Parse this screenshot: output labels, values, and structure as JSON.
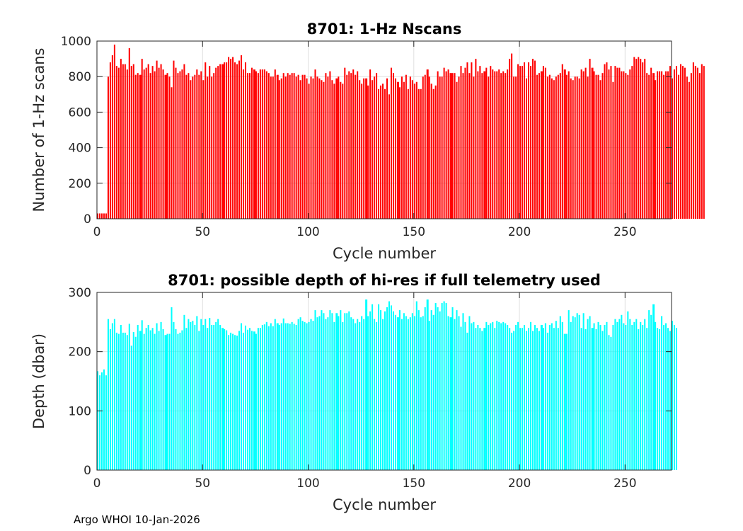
{
  "footer": "Argo WHOI 10-Jan-2026",
  "chart_data": [
    {
      "type": "bar",
      "title": "8701: 1-Hz Nscans",
      "xlabel": "Cycle number",
      "ylabel": "Number of 1-Hz scans",
      "xlim": [
        0,
        272
      ],
      "ylim": [
        0,
        1000
      ],
      "xticks": [
        0,
        50,
        100,
        150,
        200,
        250
      ],
      "yticks": [
        0,
        200,
        400,
        600,
        800,
        1000
      ],
      "grid": true,
      "color": "#ff0000",
      "gaps_after": [
        20,
        32,
        59,
        74,
        85,
        113,
        127,
        142,
        156,
        167,
        183,
        210,
        221,
        234,
        263
      ],
      "values": [
        30,
        30,
        30,
        30,
        30,
        800,
        880,
        920,
        980,
        860,
        850,
        900,
        870,
        870,
        840,
        960,
        860,
        870,
        810,
        820,
        810,
        900,
        840,
        850,
        870,
        820,
        860,
        830,
        890,
        850,
        870,
        840,
        810,
        820,
        800,
        740,
        890,
        850,
        820,
        830,
        840,
        870,
        810,
        820,
        780,
        800,
        810,
        840,
        810,
        830,
        780,
        880,
        800,
        860,
        800,
        820,
        850,
        860,
        870,
        870,
        880,
        880,
        910,
        900,
        910,
        880,
        870,
        890,
        920,
        840,
        880,
        820,
        820,
        850,
        840,
        830,
        820,
        840,
        840,
        840,
        830,
        820,
        800,
        800,
        840,
        810,
        780,
        790,
        820,
        800,
        820,
        810,
        820,
        820,
        800,
        810,
        780,
        810,
        810,
        790,
        760,
        800,
        790,
        840,
        800,
        790,
        780,
        770,
        820,
        800,
        830,
        780,
        760,
        790,
        800,
        770,
        760,
        850,
        810,
        830,
        820,
        840,
        810,
        830,
        780,
        760,
        790,
        790,
        750,
        840,
        780,
        800,
        820,
        730,
        750,
        760,
        730,
        790,
        700,
        850,
        820,
        790,
        770,
        740,
        800,
        770,
        810,
        730,
        800,
        780,
        760,
        770,
        730,
        730,
        800,
        810,
        840,
        800,
        760,
        730,
        750,
        830,
        800,
        800,
        850,
        830,
        840,
        820,
        820,
        820,
        770,
        800,
        860,
        820,
        850,
        880,
        820,
        880,
        800,
        900,
        830,
        860,
        820,
        830,
        850,
        800,
        860,
        840,
        830,
        830,
        840,
        820,
        830,
        820,
        840,
        900,
        930,
        800,
        800,
        870,
        860,
        860,
        880,
        790,
        880,
        860,
        900,
        890,
        810,
        820,
        830,
        860,
        850,
        800,
        810,
        790,
        780,
        800,
        810,
        820,
        870,
        840,
        810,
        830,
        790,
        780,
        800,
        800,
        790,
        840,
        830,
        850,
        800,
        900,
        850,
        830,
        810,
        810,
        780,
        820,
        870,
        880,
        840,
        860,
        770,
        860,
        850,
        850,
        830,
        830,
        820,
        810,
        840,
        860,
        910,
        900,
        910,
        900,
        880,
        900,
        820,
        810,
        850,
        820,
        780,
        830,
        830,
        830,
        810,
        830,
        830,
        860,
        790,
        840,
        860,
        810,
        870,
        860,
        850,
        800,
        770,
        820,
        880,
        860,
        850,
        820,
        870,
        860
      ]
    },
    {
      "type": "bar",
      "title": "8701: possible depth of hi-res if full telemetry used",
      "xlabel": "Cycle number",
      "ylabel": "Depth (dbar)",
      "xlim": [
        0,
        272
      ],
      "ylim": [
        0,
        300
      ],
      "xticks": [
        0,
        50,
        100,
        150,
        200,
        250
      ],
      "yticks": [
        0,
        100,
        200,
        300
      ],
      "grid": true,
      "color": "#00ffff",
      "gaps_after": [
        20,
        32,
        59,
        74,
        85,
        113,
        127,
        142,
        156,
        167,
        183,
        210,
        221,
        234,
        263
      ],
      "values": [
        167,
        160,
        165,
        170,
        160,
        255,
        238,
        248,
        255,
        232,
        230,
        245,
        232,
        232,
        228,
        247,
        210,
        233,
        225,
        245,
        235,
        253,
        230,
        240,
        245,
        236,
        240,
        230,
        248,
        235,
        250,
        238,
        228,
        230,
        230,
        275,
        250,
        238,
        230,
        232,
        236,
        262,
        240,
        255,
        250,
        252,
        245,
        260,
        235,
        255,
        245,
        255,
        240,
        257,
        245,
        245,
        250,
        255,
        245,
        240,
        238,
        236,
        228,
        232,
        230,
        228,
        227,
        235,
        248,
        232,
        244,
        237,
        240,
        235,
        234,
        230,
        240,
        240,
        245,
        246,
        250,
        243,
        248,
        243,
        255,
        248,
        245,
        248,
        256,
        248,
        248,
        247,
        250,
        247,
        245,
        255,
        258,
        252,
        250,
        248,
        250,
        255,
        252,
        270,
        258,
        260,
        270,
        265,
        255,
        258,
        270,
        265,
        250,
        265,
        260,
        270,
        250,
        265,
        265,
        268,
        258,
        255,
        248,
        255,
        250,
        260,
        255,
        288,
        260,
        268,
        280,
        255,
        250,
        280,
        270,
        255,
        268,
        275,
        285,
        278,
        268,
        262,
        258,
        270,
        255,
        265,
        260,
        255,
        258,
        265,
        260,
        285,
        270,
        258,
        260,
        275,
        288,
        252,
        270,
        262,
        282,
        275,
        268,
        282,
        285,
        282,
        260,
        258,
        275,
        255,
        270,
        260,
        242,
        265,
        250,
        232,
        260,
        248,
        250,
        240,
        245,
        240,
        235,
        240,
        250,
        245,
        248,
        250,
        240,
        252,
        250,
        248,
        250,
        248,
        245,
        240,
        232,
        235,
        245,
        250,
        240,
        240,
        245,
        235,
        240,
        250,
        235,
        245,
        240,
        235,
        245,
        240,
        248,
        232,
        245,
        248,
        240,
        252,
        240,
        260,
        250,
        230,
        230,
        270,
        250,
        260,
        258,
        265,
        262,
        240,
        265,
        238,
        255,
        260,
        240,
        248,
        238,
        250,
        245,
        235,
        245,
        250,
        228,
        225,
        245,
        255,
        250,
        255,
        262,
        248,
        245,
        268,
        255,
        245,
        250,
        255,
        238,
        250,
        245,
        255,
        240,
        270,
        262,
        280,
        250,
        240,
        238,
        260,
        245,
        248,
        240,
        235,
        252,
        245,
        240
      ]
    }
  ]
}
